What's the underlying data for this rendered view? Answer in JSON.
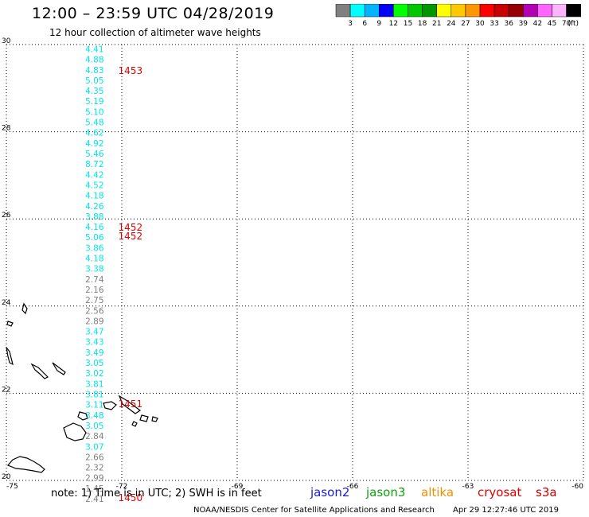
{
  "header": {
    "title": "12:00 – 23:59 UTC 04/28/2019",
    "subtitle": "12 hour collection of altimeter wave heights"
  },
  "colors": {
    "swh_scale": [
      "#808080",
      "#00ffff",
      "#00b4ff",
      "#0000ff",
      "#00ff00",
      "#00c800",
      "#009600",
      "#ffff00",
      "#ffc800",
      "#ff9600",
      "#ff0000",
      "#c80000",
      "#960000",
      "#b400b4",
      "#ff64ff",
      "#ffb4ff",
      "#000000"
    ],
    "cyan": "#00e6e6",
    "gray": "#808080",
    "time_label": "#e00000",
    "jason2": "#1a1adc",
    "jason3": "#10a010",
    "altika": "#f09000",
    "cryosat": "#e00000",
    "s3a": "#c80000",
    "grid": "#000000",
    "coast": "#000000"
  },
  "colorbar": {
    "labels": [
      "3",
      "6",
      "9",
      "12",
      "15",
      "18",
      "21",
      "24",
      "27",
      "30",
      "33",
      "36",
      "39",
      "42",
      "45",
      "70"
    ],
    "unit": "(ft)"
  },
  "legend": {
    "note": "note:  1) Time is in UTC;  2) SWH is in feet",
    "jason2": "jason2",
    "jason3": "jason3",
    "altika": "altika",
    "cryosat": "cryosat",
    "s3a": "s3a"
  },
  "footer": {
    "credit": "NOAA/NESDIS Center for Satellite Applications and Research",
    "timestamp": "Apr 29 12:27:46 UTC 2019"
  },
  "chart_data": {
    "type": "scatter",
    "title": "12:00 – 23:59 UTC 04/28/2019",
    "subtitle": "12 hour collection of altimeter wave heights",
    "xlabel": "",
    "ylabel": "",
    "xlim": [
      -75,
      -60
    ],
    "ylim": [
      20,
      30
    ],
    "x_ticks": [
      "-75",
      "-72",
      "-69",
      "-66",
      "-63",
      "-60"
    ],
    "y_ticks": [
      "20",
      "22",
      "24",
      "26",
      "28",
      "30"
    ],
    "grid": true,
    "track_longitude": -72.5,
    "points": [
      {
        "lat": 29.9,
        "swh": "4.41",
        "bin": "cyan"
      },
      {
        "lat": 29.66,
        "swh": "4.88",
        "bin": "cyan"
      },
      {
        "lat": 29.42,
        "swh": "4.83",
        "bin": "cyan"
      },
      {
        "lat": 29.18,
        "swh": "5.05",
        "bin": "cyan"
      },
      {
        "lat": 28.94,
        "swh": "4.35",
        "bin": "cyan"
      },
      {
        "lat": 28.7,
        "swh": "5.19",
        "bin": "cyan"
      },
      {
        "lat": 28.46,
        "swh": "5.10",
        "bin": "cyan"
      },
      {
        "lat": 28.22,
        "swh": "5.48",
        "bin": "cyan"
      },
      {
        "lat": 27.98,
        "swh": "4.62",
        "bin": "cyan"
      },
      {
        "lat": 27.74,
        "swh": "4.92",
        "bin": "cyan"
      },
      {
        "lat": 27.5,
        "swh": "5.46",
        "bin": "cyan"
      },
      {
        "lat": 27.26,
        "swh": "8.72",
        "bin": "cyan"
      },
      {
        "lat": 27.02,
        "swh": "4.42",
        "bin": "cyan"
      },
      {
        "lat": 26.78,
        "swh": "4.52",
        "bin": "cyan"
      },
      {
        "lat": 26.54,
        "swh": "4.18",
        "bin": "cyan"
      },
      {
        "lat": 26.3,
        "swh": "4.26",
        "bin": "cyan"
      },
      {
        "lat": 26.06,
        "swh": "3.88",
        "bin": "cyan"
      },
      {
        "lat": 25.82,
        "swh": "4.16",
        "bin": "cyan"
      },
      {
        "lat": 25.58,
        "swh": "5.06",
        "bin": "cyan"
      },
      {
        "lat": 25.34,
        "swh": "3.86",
        "bin": "cyan"
      },
      {
        "lat": 25.1,
        "swh": "4.18",
        "bin": "cyan"
      },
      {
        "lat": 24.86,
        "swh": "3.38",
        "bin": "cyan"
      },
      {
        "lat": 24.62,
        "swh": "2.74",
        "bin": "gray"
      },
      {
        "lat": 24.38,
        "swh": "2.16",
        "bin": "gray"
      },
      {
        "lat": 24.14,
        "swh": "2.75",
        "bin": "gray"
      },
      {
        "lat": 23.9,
        "swh": "2.56",
        "bin": "gray"
      },
      {
        "lat": 23.66,
        "swh": "2.89",
        "bin": "gray"
      },
      {
        "lat": 23.42,
        "swh": "3.47",
        "bin": "cyan"
      },
      {
        "lat": 23.18,
        "swh": "3.43",
        "bin": "cyan"
      },
      {
        "lat": 22.94,
        "swh": "3.49",
        "bin": "cyan"
      },
      {
        "lat": 22.7,
        "swh": "3.05",
        "bin": "cyan"
      },
      {
        "lat": 22.46,
        "swh": "3.02",
        "bin": "cyan"
      },
      {
        "lat": 22.22,
        "swh": "3.81",
        "bin": "cyan"
      },
      {
        "lat": 21.98,
        "swh": "3.81",
        "bin": "cyan"
      },
      {
        "lat": 21.74,
        "swh": "3.11",
        "bin": "cyan"
      },
      {
        "lat": 21.5,
        "swh": "3.48",
        "bin": "cyan"
      },
      {
        "lat": 21.26,
        "swh": "3.05",
        "bin": "cyan"
      },
      {
        "lat": 21.02,
        "swh": "2.84",
        "bin": "gray"
      },
      {
        "lat": 20.78,
        "swh": "3.07",
        "bin": "cyan"
      },
      {
        "lat": 20.54,
        "swh": "2.66",
        "bin": "gray"
      },
      {
        "lat": 20.3,
        "swh": "2.32",
        "bin": "gray"
      },
      {
        "lat": 20.06,
        "swh": "2.99",
        "bin": "gray"
      },
      {
        "lat": 19.82,
        "swh": "1.45",
        "bin": "gray"
      },
      {
        "lat": 19.58,
        "swh": "2.41",
        "bin": "gray"
      }
    ],
    "time_labels": [
      {
        "text": "1453",
        "lat": 29.4
      },
      {
        "text": "1452",
        "lat": 25.8
      },
      {
        "text": "1452",
        "lat": 25.6
      },
      {
        "text": "1451",
        "lat": 21.75
      },
      {
        "text": "1450",
        "lat": 19.6
      }
    ]
  }
}
